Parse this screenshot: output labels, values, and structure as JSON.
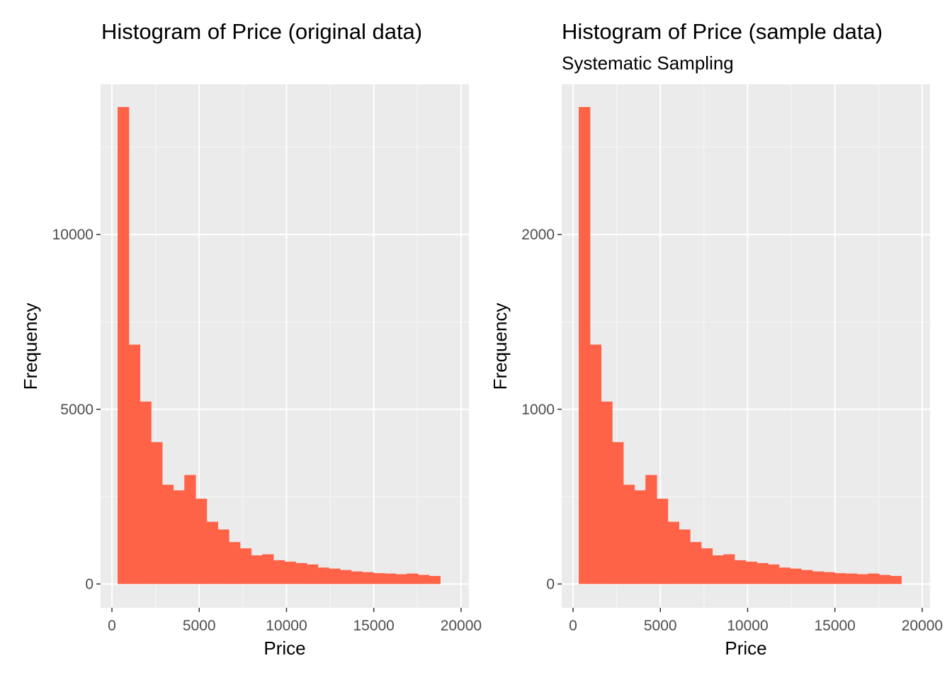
{
  "colors": {
    "bar": "#FF6347",
    "panel_bg": "#EBEBEB",
    "grid_major": "#FFFFFF",
    "grid_minor": "#F7F7F7",
    "tick": "#333333"
  },
  "chart_data": [
    {
      "type": "bar",
      "title": "Histogram of Price (original data)",
      "subtitle": "",
      "xlabel": "Price",
      "ylabel": "Frequency",
      "xlim": [
        -650,
        20450
      ],
      "ylim": [
        -680,
        14300
      ],
      "x_ticks": [
        "0",
        "5000",
        "10000",
        "15000",
        "20000"
      ],
      "y_ticks": [
        "0",
        "5000",
        "10000"
      ],
      "bin_start": 326,
      "bin_width": 637,
      "values": [
        13650,
        6850,
        5220,
        4060,
        2840,
        2680,
        3120,
        2440,
        1780,
        1560,
        1200,
        1020,
        820,
        850,
        680,
        640,
        600,
        560,
        470,
        440,
        400,
        360,
        340,
        310,
        300,
        280,
        300,
        260,
        230
      ]
    },
    {
      "type": "bar",
      "title": "Histogram of Price (sample data)",
      "subtitle": "Systematic Sampling",
      "xlabel": "Price",
      "ylabel": "Frequency",
      "xlim": [
        -650,
        20450
      ],
      "ylim": [
        -136,
        2860
      ],
      "x_ticks": [
        "0",
        "5000",
        "10000",
        "15000",
        "20000"
      ],
      "y_ticks": [
        "0",
        "1000",
        "2000"
      ],
      "bin_start": 326,
      "bin_width": 637,
      "values": [
        2730,
        1370,
        1044,
        812,
        568,
        536,
        624,
        488,
        356,
        312,
        240,
        204,
        164,
        170,
        136,
        128,
        120,
        112,
        94,
        88,
        80,
        72,
        68,
        62,
        60,
        56,
        60,
        52,
        46
      ]
    }
  ]
}
